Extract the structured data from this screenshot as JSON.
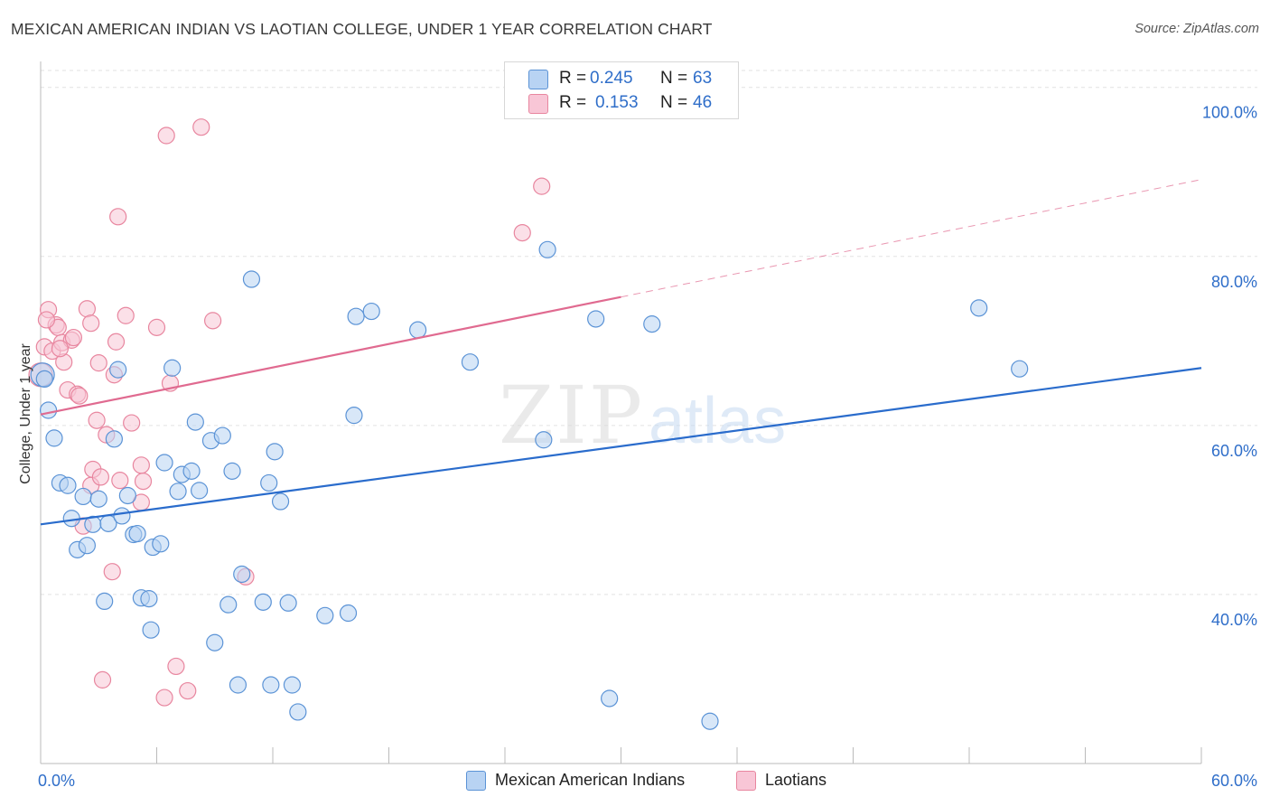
{
  "header": {
    "title": "MEXICAN AMERICAN INDIAN VS LAOTIAN COLLEGE, UNDER 1 YEAR CORRELATION CHART",
    "source": "Source: ZipAtlas.com"
  },
  "legend": {
    "r_label": "R =",
    "n_label": "N =",
    "series": [
      {
        "name": "Mexican American Indians",
        "r": "0.245",
        "n": "63"
      },
      {
        "name": "Laotians",
        "r": "0.153",
        "n": "46"
      }
    ]
  },
  "colors": {
    "blue_fill": "#b8d3f3",
    "blue_stroke": "#5b93d6",
    "blue_line": "#2a6ccc",
    "pink_fill": "#f8c6d6",
    "pink_stroke": "#e8869f",
    "pink_line": "#e06a90",
    "axis_label": "#2f6ec9",
    "grid": "#e2e2e2"
  },
  "watermark": {
    "part1": "ZIP",
    "part2": "atlas"
  },
  "chart_data": {
    "type": "scatter",
    "title": "MEXICAN AMERICAN INDIAN VS LAOTIAN COLLEGE, UNDER 1 YEAR CORRELATION CHART",
    "xlabel": "",
    "ylabel": "College, Under 1 year",
    "xlim": [
      0,
      60
    ],
    "ylim": [
      20,
      102
    ],
    "x_tick_labels": [
      "0.0%",
      "60.0%"
    ],
    "y_ticks": [
      40,
      60,
      80,
      100
    ],
    "y_tick_labels": [
      "40.0%",
      "60.0%",
      "80.0%",
      "100.0%"
    ],
    "grid": true,
    "series": [
      {
        "name": "Mexican American Indians",
        "r": 0.245,
        "n": 63,
        "trend": {
          "x": [
            0,
            60
          ],
          "y": [
            48.3,
            66.8
          ],
          "dashed_from": null
        },
        "points": [
          [
            0.1,
            66.0
          ],
          [
            0.4,
            61.8
          ],
          [
            0.7,
            58.5
          ],
          [
            1.0,
            53.2
          ],
          [
            1.4,
            52.9
          ],
          [
            1.6,
            49.0
          ],
          [
            1.9,
            45.3
          ],
          [
            2.2,
            51.6
          ],
          [
            2.4,
            45.8
          ],
          [
            2.7,
            48.3
          ],
          [
            3.0,
            51.3
          ],
          [
            3.3,
            39.2
          ],
          [
            3.5,
            48.4
          ],
          [
            3.8,
            58.4
          ],
          [
            4.0,
            66.6
          ],
          [
            4.2,
            49.3
          ],
          [
            4.5,
            51.7
          ],
          [
            4.8,
            47.1
          ],
          [
            5.0,
            47.2
          ],
          [
            5.2,
            39.6
          ],
          [
            5.6,
            39.5
          ],
          [
            5.7,
            35.8
          ],
          [
            5.8,
            45.6
          ],
          [
            6.2,
            46.0
          ],
          [
            6.4,
            55.6
          ],
          [
            6.8,
            66.8
          ],
          [
            7.1,
            52.2
          ],
          [
            7.3,
            54.2
          ],
          [
            7.8,
            54.6
          ],
          [
            8.0,
            60.4
          ],
          [
            8.2,
            52.3
          ],
          [
            8.8,
            58.2
          ],
          [
            9.0,
            34.3
          ],
          [
            9.4,
            58.8
          ],
          [
            9.7,
            38.8
          ],
          [
            9.9,
            54.6
          ],
          [
            10.2,
            29.3
          ],
          [
            10.4,
            42.4
          ],
          [
            10.9,
            77.3
          ],
          [
            11.5,
            39.1
          ],
          [
            11.8,
            53.2
          ],
          [
            11.9,
            29.3
          ],
          [
            12.1,
            56.9
          ],
          [
            12.4,
            51.0
          ],
          [
            12.8,
            39.0
          ],
          [
            13.0,
            29.3
          ],
          [
            13.3,
            26.1
          ],
          [
            14.7,
            37.5
          ],
          [
            15.9,
            37.8
          ],
          [
            16.2,
            61.2
          ],
          [
            16.3,
            72.9
          ],
          [
            17.1,
            73.5
          ],
          [
            19.5,
            71.3
          ],
          [
            22.2,
            67.5
          ],
          [
            26.0,
            58.3
          ],
          [
            26.2,
            80.8
          ],
          [
            28.7,
            72.6
          ],
          [
            29.4,
            27.7
          ],
          [
            31.6,
            72.0
          ],
          [
            34.6,
            25.0
          ],
          [
            48.5,
            73.9
          ],
          [
            50.6,
            66.7
          ],
          [
            0.2,
            65.5
          ]
        ]
      },
      {
        "name": "Laotians",
        "r": 0.153,
        "n": 46,
        "trend": {
          "x": [
            0,
            60
          ],
          "y": [
            61.3,
            89.1
          ],
          "dashed_from": 30
        },
        "points": [
          [
            0.0,
            66.0
          ],
          [
            0.2,
            69.3
          ],
          [
            0.4,
            73.7
          ],
          [
            0.6,
            68.8
          ],
          [
            0.8,
            71.9
          ],
          [
            0.9,
            71.6
          ],
          [
            1.1,
            69.8
          ],
          [
            1.2,
            67.5
          ],
          [
            1.4,
            64.2
          ],
          [
            1.6,
            70.1
          ],
          [
            1.7,
            70.4
          ],
          [
            1.9,
            63.7
          ],
          [
            2.0,
            63.5
          ],
          [
            2.2,
            48.1
          ],
          [
            2.4,
            73.8
          ],
          [
            2.6,
            72.1
          ],
          [
            2.6,
            52.9
          ],
          [
            2.7,
            54.8
          ],
          [
            2.9,
            60.6
          ],
          [
            3.0,
            67.4
          ],
          [
            3.1,
            53.9
          ],
          [
            3.2,
            29.9
          ],
          [
            3.4,
            58.9
          ],
          [
            3.7,
            42.7
          ],
          [
            3.8,
            66.0
          ],
          [
            3.9,
            69.9
          ],
          [
            4.0,
            84.7
          ],
          [
            4.1,
            53.5
          ],
          [
            4.4,
            73.0
          ],
          [
            4.7,
            60.3
          ],
          [
            5.2,
            55.3
          ],
          [
            5.2,
            50.9
          ],
          [
            5.3,
            53.4
          ],
          [
            6.0,
            71.6
          ],
          [
            6.4,
            27.8
          ],
          [
            6.5,
            94.3
          ],
          [
            6.7,
            65.0
          ],
          [
            7.0,
            31.5
          ],
          [
            7.6,
            28.6
          ],
          [
            8.3,
            95.3
          ],
          [
            8.9,
            72.4
          ],
          [
            10.6,
            42.1
          ],
          [
            24.9,
            82.8
          ],
          [
            25.9,
            88.3
          ],
          [
            0.3,
            72.5
          ],
          [
            1.0,
            69.1
          ]
        ]
      }
    ]
  }
}
